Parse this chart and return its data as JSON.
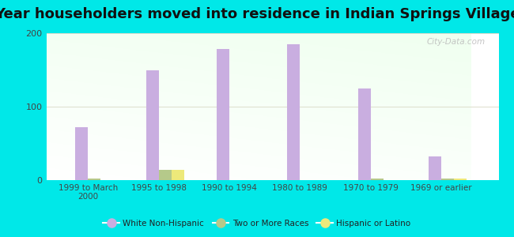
{
  "title": "Year householders moved into residence in Indian Springs Village",
  "categories": [
    "1999 to March\n2000",
    "1995 to 1998",
    "1990 to 1994",
    "1980 to 1989",
    "1970 to 1979",
    "1969 or earlier"
  ],
  "series": {
    "White Non-Hispanic": [
      72,
      150,
      178,
      185,
      125,
      32
    ],
    "Two or More Races": [
      2,
      14,
      0,
      0,
      2,
      2
    ],
    "Hispanic or Latino": [
      0,
      14,
      0,
      0,
      0,
      2
    ]
  },
  "colors": {
    "White Non-Hispanic": "#c9aee0",
    "Two or More Races": "#b5c98a",
    "Hispanic or Latino": "#ede97a"
  },
  "ylim": [
    0,
    200
  ],
  "yticks": [
    0,
    100,
    200
  ],
  "bar_width": 0.18,
  "outer_bg": "#00e8e8",
  "title_fontsize": 13,
  "watermark": "City-Data.com"
}
